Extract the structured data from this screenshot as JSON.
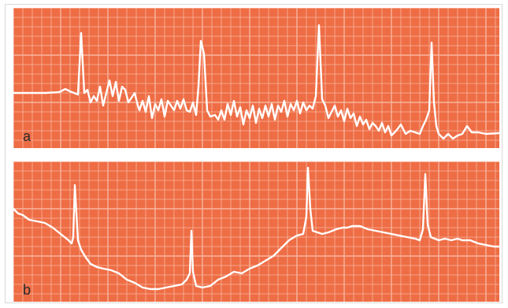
{
  "panels": [
    {
      "label": "a"
    },
    {
      "label": "b"
    }
  ],
  "colors": {
    "grid_background": "#ee6d45",
    "grid_line": "#f7b59f",
    "trace": "#ffffff"
  }
}
